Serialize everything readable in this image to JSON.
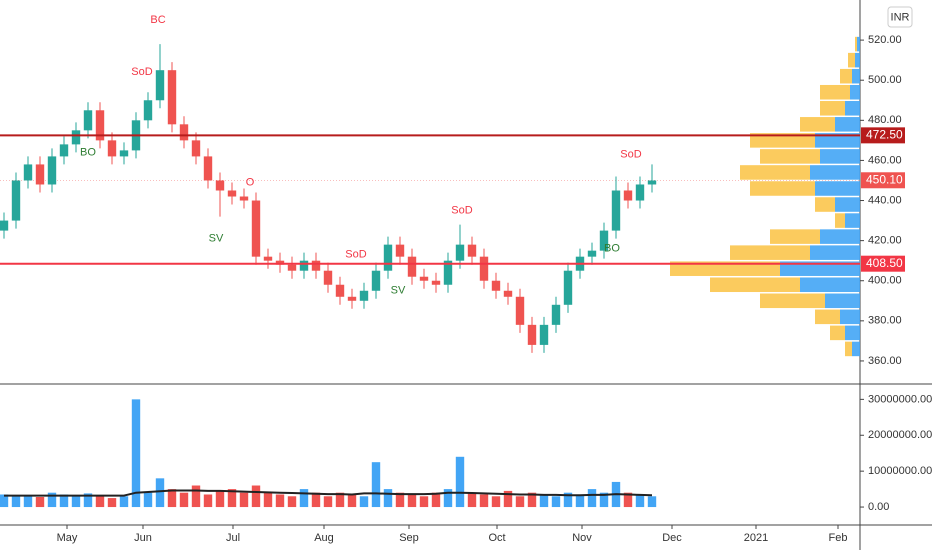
{
  "chart_data": {
    "type": "candlestick",
    "currency": "INR",
    "x": [
      1,
      4,
      7,
      10,
      13,
      16,
      19,
      22,
      25,
      28,
      31,
      34,
      37,
      40,
      43,
      46,
      49,
      52,
      55,
      58,
      61,
      64,
      67,
      70,
      73,
      76,
      79,
      82,
      85,
      88,
      91,
      94,
      97,
      100,
      103,
      106,
      109,
      112,
      115,
      118,
      121,
      124,
      127,
      130,
      133,
      136,
      139,
      142,
      145,
      148,
      151,
      154,
      157,
      160,
      163
    ],
    "open": [
      425,
      430,
      450,
      458,
      448,
      462,
      468,
      475,
      485,
      470,
      462,
      465,
      480,
      490,
      505,
      478,
      470,
      462,
      450,
      445,
      442,
      440,
      412,
      410,
      408,
      405,
      410,
      405,
      398,
      392,
      390,
      395,
      405,
      418,
      412,
      402,
      400,
      398,
      410,
      418,
      412,
      400,
      395,
      392,
      378,
      368,
      378,
      388,
      405,
      412,
      415,
      425,
      445,
      440,
      448
    ],
    "high": [
      434,
      454,
      462,
      462,
      466,
      472,
      479,
      489,
      489,
      474,
      469,
      484,
      494,
      518,
      509,
      482,
      474,
      466,
      454,
      449,
      446,
      444,
      416,
      414,
      412,
      414,
      414,
      409,
      402,
      396,
      399,
      409,
      422,
      422,
      416,
      406,
      404,
      414,
      428,
      422,
      416,
      404,
      399,
      396,
      382,
      382,
      392,
      409,
      416,
      419,
      429,
      452,
      449,
      452,
      458
    ],
    "low": [
      421,
      426,
      446,
      444,
      444,
      458,
      464,
      471,
      466,
      458,
      458,
      461,
      476,
      486,
      474,
      466,
      458,
      446,
      432,
      438,
      436,
      408,
      406,
      404,
      401,
      401,
      401,
      394,
      388,
      386,
      386,
      391,
      401,
      408,
      398,
      396,
      394,
      394,
      406,
      408,
      396,
      391,
      388,
      374,
      364,
      364,
      374,
      384,
      401,
      408,
      411,
      421,
      436,
      436,
      444
    ],
    "close": [
      430,
      450,
      458,
      448,
      462,
      468,
      475,
      485,
      470,
      462,
      465,
      480,
      490,
      505,
      478,
      470,
      462,
      450,
      445,
      442,
      440,
      412,
      410,
      408,
      405,
      410,
      405,
      398,
      392,
      390,
      395,
      405,
      418,
      412,
      402,
      400,
      398,
      410,
      418,
      412,
      400,
      395,
      392,
      378,
      368,
      378,
      388,
      405,
      412,
      415,
      425,
      445,
      440,
      448,
      450
    ],
    "volume": [
      3500000,
      3000000,
      3200000,
      2800000,
      4000000,
      3500000,
      3200000,
      3800000,
      3000000,
      2500000,
      3000000,
      30000000,
      4000000,
      8000000,
      5000000,
      4000000,
      6000000,
      3500000,
      4500000,
      5000000,
      4000000,
      6000000,
      4000000,
      3500000,
      3000000,
      5000000,
      4000000,
      3000000,
      4000000,
      3500000,
      3000000,
      12500000,
      5000000,
      4000000,
      3500000,
      3000000,
      4000000,
      5000000,
      14000000,
      4000000,
      3500000,
      3000000,
      4500000,
      3000000,
      4000000,
      3500000,
      3000000,
      4000000,
      3500000,
      5000000,
      4000000,
      7000000,
      4000000,
      3500000,
      3000000
    ],
    "volume_ma": [
      3200000,
      3200000,
      3200000,
      3200000,
      3200000,
      3200000,
      3200000,
      3200000,
      3200000,
      3200000,
      3200000,
      4000000,
      4200000,
      4400000,
      4600000,
      4600000,
      4600000,
      4500000,
      4500000,
      4400000,
      4300000,
      4200000,
      4100000,
      4000000,
      3900000,
      3800000,
      3700000,
      3600000,
      3600000,
      3500000,
      3800000,
      3800000,
      3700000,
      3600000,
      3600000,
      3600000,
      3700000,
      4000000,
      4000000,
      3900000,
      3800000,
      3700000,
      3600000,
      3500000,
      3500000,
      3400000,
      3400000,
      3300000,
      3300000,
      3400000,
      3400000,
      3600000,
      3500000,
      3400000,
      3300000
    ],
    "up_color": "#26a69a",
    "down_color": "#ef5350",
    "volume_up_color": "#42a5f5",
    "volume_down_color": "#ef5350",
    "volume_ma_color": "#222222",
    "xlim": [
      0,
      215
    ],
    "xticks": [
      {
        "value": 16.75,
        "label": "May"
      },
      {
        "value": 35.75,
        "label": "Jun"
      },
      {
        "value": 58.25,
        "label": "Jul"
      },
      {
        "value": 81,
        "label": "Aug"
      },
      {
        "value": 102.25,
        "label": "Sep"
      },
      {
        "value": 124.25,
        "label": "Oct"
      },
      {
        "value": 145.5,
        "label": "Nov"
      },
      {
        "value": 168,
        "label": "Dec"
      },
      {
        "value": 189,
        "label": "2021"
      },
      {
        "value": 209.5,
        "label": "Feb"
      }
    ],
    "ylim": [
      349,
      540
    ],
    "yticks": [
      {
        "value": 360,
        "label": "360.00"
      },
      {
        "value": 380,
        "label": "380.00"
      },
      {
        "value": 400,
        "label": "400.00"
      },
      {
        "value": 420,
        "label": "420.00"
      },
      {
        "value": 440,
        "label": "440.00"
      },
      {
        "value": 460,
        "label": "460.00"
      },
      {
        "value": 480,
        "label": "480.00"
      },
      {
        "value": 500,
        "label": "500.00"
      },
      {
        "value": 520,
        "label": "520.00"
      }
    ],
    "volume_ylim": [
      -5000000,
      34000000
    ],
    "volume_yticks": [
      {
        "value": 0,
        "label": "0.00"
      },
      {
        "value": 10000000,
        "label": "10000000.00"
      },
      {
        "value": 20000000,
        "label": "20000000.00"
      },
      {
        "value": 30000000,
        "label": "30000000.00"
      }
    ],
    "price_lines": [
      {
        "value": 472.5,
        "label": "472.50",
        "color": "#b71c1c"
      },
      {
        "value": 408.5,
        "label": "408.50",
        "color": "#f23645"
      }
    ],
    "last_price": {
      "value": 450.1,
      "label": "450.10",
      "color": "#ef5350"
    },
    "annotations": [
      {
        "text": "BC",
        "x": 39.5,
        "y": 530,
        "color": "#f23645"
      },
      {
        "text": "SoD",
        "x": 35.5,
        "y": 504,
        "color": "#f23645"
      },
      {
        "text": "BO",
        "x": 22,
        "y": 464,
        "color": "#2e7d32"
      },
      {
        "text": "SV",
        "x": 54,
        "y": 421,
        "color": "#2e7d32"
      },
      {
        "text": "O",
        "x": 62.5,
        "y": 449,
        "color": "#f23645"
      },
      {
        "text": "SoD",
        "x": 89,
        "y": 413,
        "color": "#f23645"
      },
      {
        "text": "SV",
        "x": 99.5,
        "y": 395,
        "color": "#2e7d32"
      },
      {
        "text": "SoD",
        "x": 115.5,
        "y": 435,
        "color": "#f23645"
      },
      {
        "text": "SoD",
        "x": 157.75,
        "y": 463,
        "color": "#f23645"
      },
      {
        "text": "BO",
        "x": 153,
        "y": 416,
        "color": "#2e7d32"
      }
    ],
    "profile": {
      "levels": [
        366,
        374,
        382,
        390,
        398,
        406,
        414,
        422,
        430,
        438,
        446,
        454,
        462,
        470,
        478,
        486,
        494,
        502,
        510,
        518
      ],
      "series": [
        {
          "color": "#42a5f5",
          "values": [
            8,
            15,
            20,
            35,
            60,
            80,
            50,
            40,
            15,
            25,
            45,
            50,
            40,
            45,
            25,
            15,
            10,
            8,
            5,
            3
          ]
        },
        {
          "color": "#fbc54d",
          "values": [
            7,
            15,
            25,
            65,
            90,
            110,
            80,
            50,
            10,
            20,
            65,
            70,
            60,
            65,
            35,
            25,
            30,
            12,
            7,
            2
          ]
        }
      ]
    }
  }
}
